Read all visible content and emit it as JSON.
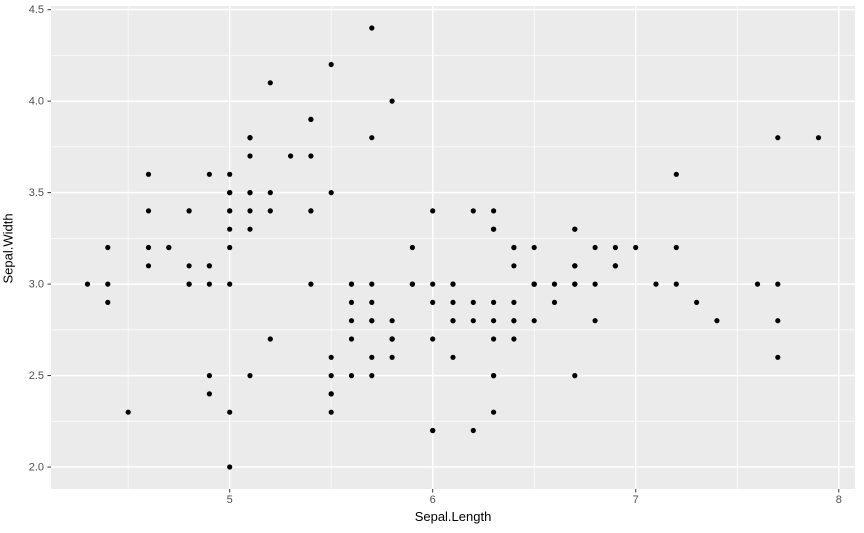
{
  "chart_data": {
    "type": "scatter",
    "title": "",
    "xlabel": "Sepal.Length",
    "ylabel": "Sepal.Width",
    "legend_position": "none",
    "grid": true,
    "x_domain": [
      4.12,
      8.08
    ],
    "y_domain": [
      1.88,
      4.52
    ],
    "x_major_ticks": [
      5,
      6,
      7,
      8
    ],
    "x_tick_labels": [
      "5",
      "6",
      "7",
      "8"
    ],
    "x_minor_ticks": [
      4.5,
      5.5,
      6.5,
      7.5
    ],
    "y_major_ticks": [
      2.0,
      2.5,
      3.0,
      3.5,
      4.0,
      4.5
    ],
    "y_tick_labels": [
      "2.0",
      "2.5",
      "3.0",
      "3.5",
      "4.0",
      "4.5"
    ],
    "y_minor_ticks": [
      2.25,
      2.75,
      3.25,
      3.75,
      4.25
    ],
    "colors": {
      "panel_background": "#EBEBEB",
      "grid_major": "#FFFFFF",
      "grid_minor": "#FFFFFF",
      "point": "#000000",
      "axis_text": "#4D4D4D",
      "axis_title": "#000000",
      "tick_mark": "#333333",
      "figure_background": "#FFFFFF"
    },
    "points": [
      [
        5.1,
        3.5
      ],
      [
        4.9,
        3.0
      ],
      [
        4.7,
        3.2
      ],
      [
        4.6,
        3.1
      ],
      [
        5.0,
        3.6
      ],
      [
        5.4,
        3.9
      ],
      [
        4.6,
        3.4
      ],
      [
        5.0,
        3.4
      ],
      [
        4.4,
        2.9
      ],
      [
        4.9,
        3.1
      ],
      [
        5.4,
        3.7
      ],
      [
        4.8,
        3.4
      ],
      [
        4.8,
        3.0
      ],
      [
        4.3,
        3.0
      ],
      [
        5.8,
        4.0
      ],
      [
        5.7,
        4.4
      ],
      [
        5.4,
        3.9
      ],
      [
        5.1,
        3.5
      ],
      [
        5.7,
        3.8
      ],
      [
        5.1,
        3.8
      ],
      [
        5.4,
        3.4
      ],
      [
        5.1,
        3.7
      ],
      [
        4.6,
        3.6
      ],
      [
        5.1,
        3.3
      ],
      [
        4.8,
        3.4
      ],
      [
        5.0,
        3.0
      ],
      [
        5.0,
        3.4
      ],
      [
        5.2,
        3.5
      ],
      [
        5.2,
        3.4
      ],
      [
        4.7,
        3.2
      ],
      [
        4.8,
        3.1
      ],
      [
        5.4,
        3.4
      ],
      [
        5.2,
        4.1
      ],
      [
        5.5,
        4.2
      ],
      [
        4.9,
        3.1
      ],
      [
        5.0,
        3.2
      ],
      [
        5.5,
        3.5
      ],
      [
        4.9,
        3.6
      ],
      [
        4.4,
        3.0
      ],
      [
        5.1,
        3.4
      ],
      [
        5.0,
        3.5
      ],
      [
        4.5,
        2.3
      ],
      [
        4.4,
        3.2
      ],
      [
        5.0,
        3.5
      ],
      [
        5.1,
        3.8
      ],
      [
        4.8,
        3.0
      ],
      [
        5.1,
        3.8
      ],
      [
        4.6,
        3.2
      ],
      [
        5.3,
        3.7
      ],
      [
        5.0,
        3.3
      ],
      [
        7.0,
        3.2
      ],
      [
        6.4,
        3.2
      ],
      [
        6.9,
        3.1
      ],
      [
        5.5,
        2.3
      ],
      [
        6.5,
        2.8
      ],
      [
        5.7,
        2.8
      ],
      [
        6.3,
        3.3
      ],
      [
        4.9,
        2.4
      ],
      [
        6.6,
        2.9
      ],
      [
        5.2,
        2.7
      ],
      [
        5.0,
        2.0
      ],
      [
        5.9,
        3.0
      ],
      [
        6.0,
        2.2
      ],
      [
        6.1,
        2.9
      ],
      [
        5.6,
        2.9
      ],
      [
        6.7,
        3.1
      ],
      [
        5.6,
        3.0
      ],
      [
        5.8,
        2.7
      ],
      [
        6.2,
        2.2
      ],
      [
        5.6,
        2.5
      ],
      [
        5.9,
        3.2
      ],
      [
        6.1,
        2.8
      ],
      [
        6.3,
        2.5
      ],
      [
        6.1,
        2.8
      ],
      [
        6.4,
        2.9
      ],
      [
        6.6,
        3.0
      ],
      [
        6.8,
        2.8
      ],
      [
        6.7,
        3.0
      ],
      [
        6.0,
        2.9
      ],
      [
        5.7,
        2.6
      ],
      [
        5.5,
        2.4
      ],
      [
        5.5,
        2.4
      ],
      [
        5.8,
        2.7
      ],
      [
        6.0,
        2.7
      ],
      [
        5.4,
        3.0
      ],
      [
        6.0,
        3.4
      ],
      [
        6.7,
        3.1
      ],
      [
        6.3,
        2.3
      ],
      [
        5.6,
        3.0
      ],
      [
        5.5,
        2.5
      ],
      [
        5.5,
        2.6
      ],
      [
        6.1,
        3.0
      ],
      [
        5.8,
        2.6
      ],
      [
        5.0,
        2.3
      ],
      [
        5.6,
        2.7
      ],
      [
        5.7,
        3.0
      ],
      [
        5.7,
        2.9
      ],
      [
        6.2,
        2.9
      ],
      [
        5.1,
        2.5
      ],
      [
        5.7,
        2.8
      ],
      [
        6.3,
        3.3
      ],
      [
        5.8,
        2.7
      ],
      [
        7.1,
        3.0
      ],
      [
        6.3,
        2.9
      ],
      [
        6.5,
        3.0
      ],
      [
        7.6,
        3.0
      ],
      [
        4.9,
        2.5
      ],
      [
        7.3,
        2.9
      ],
      [
        6.7,
        2.5
      ],
      [
        7.2,
        3.6
      ],
      [
        6.5,
        3.2
      ],
      [
        6.4,
        2.7
      ],
      [
        6.8,
        3.0
      ],
      [
        5.7,
        2.5
      ],
      [
        5.8,
        2.8
      ],
      [
        6.4,
        3.2
      ],
      [
        6.5,
        3.0
      ],
      [
        7.7,
        3.8
      ],
      [
        7.7,
        2.6
      ],
      [
        6.0,
        2.2
      ],
      [
        6.9,
        3.2
      ],
      [
        5.6,
        2.8
      ],
      [
        7.7,
        2.8
      ],
      [
        6.3,
        2.7
      ],
      [
        6.7,
        3.3
      ],
      [
        7.2,
        3.2
      ],
      [
        6.2,
        2.8
      ],
      [
        6.1,
        3.0
      ],
      [
        6.4,
        2.8
      ],
      [
        7.2,
        3.0
      ],
      [
        7.4,
        2.8
      ],
      [
        7.9,
        3.8
      ],
      [
        6.4,
        2.8
      ],
      [
        6.3,
        2.8
      ],
      [
        6.1,
        2.6
      ],
      [
        7.7,
        3.0
      ],
      [
        6.3,
        3.4
      ],
      [
        6.4,
        3.1
      ],
      [
        6.0,
        3.0
      ],
      [
        6.9,
        3.1
      ],
      [
        6.7,
        3.1
      ],
      [
        6.9,
        3.1
      ],
      [
        5.8,
        2.7
      ],
      [
        6.8,
        3.2
      ],
      [
        6.7,
        3.3
      ],
      [
        6.7,
        3.0
      ],
      [
        6.3,
        2.5
      ],
      [
        6.5,
        3.0
      ],
      [
        6.2,
        3.4
      ],
      [
        5.9,
        3.0
      ]
    ]
  }
}
